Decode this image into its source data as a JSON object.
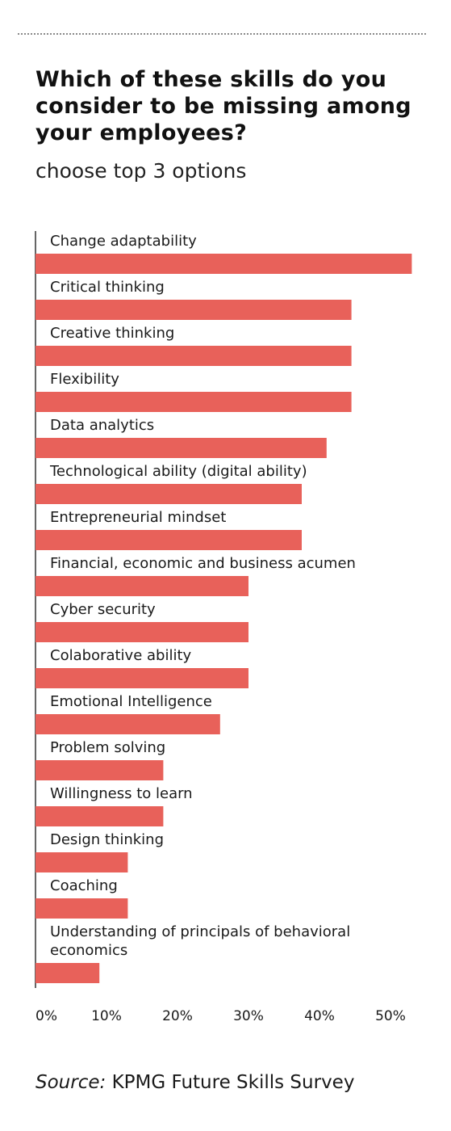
{
  "header": {
    "title": "Which of these skills do you consider to be missing among your employees?",
    "subtitle": "choose top 3 options"
  },
  "source": {
    "prefix": "Source:",
    "text": "KPMG Future Skills Survey"
  },
  "colors": {
    "bar": "#e8615a",
    "axis": "#333333",
    "divider": "#8a8a8a"
  },
  "chart_data": {
    "type": "bar",
    "orientation": "horizontal",
    "title": "Which of these skills do you consider to be missing among your employees?",
    "subtitle": "choose top 3 options",
    "categories": [
      "Change adaptability",
      "Critical thinking",
      "Creative thinking",
      "Flexibility",
      "Data analytics",
      "Technological ability (digital ability)",
      "Entrepreneurial mindset",
      "Financial, economic and business acumen",
      "Cyber security",
      "Colaborative ability",
      "Emotional Intelligence",
      "Problem solving",
      "Willingness to learn",
      "Design thinking",
      "Coaching",
      "Understanding of principals of behavioral economics"
    ],
    "values": [
      53,
      44.5,
      44.5,
      44.5,
      41,
      37.5,
      37.5,
      30,
      30,
      30,
      26,
      18,
      18,
      13,
      13,
      9
    ],
    "xlim": [
      0,
      53
    ],
    "xticks": [
      0,
      10,
      20,
      30,
      40,
      50
    ],
    "xtick_labels": [
      "0%",
      "10%",
      "20%",
      "30%",
      "40%",
      "50%"
    ],
    "xlabel": "",
    "ylabel": "",
    "grid": false,
    "legend": "none"
  }
}
